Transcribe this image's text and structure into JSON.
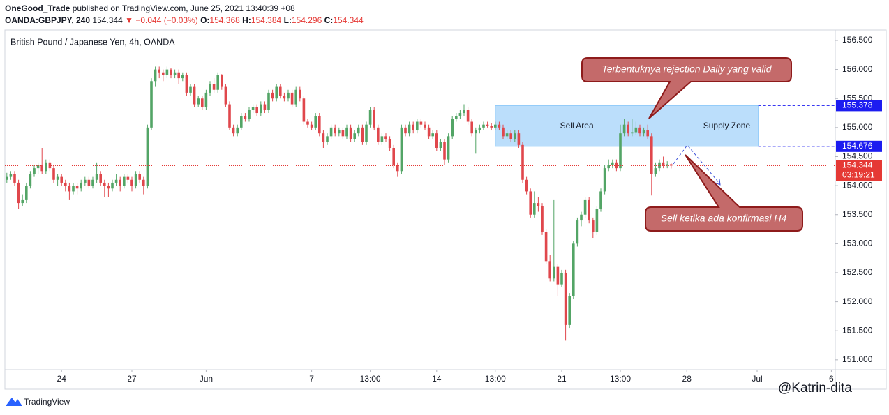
{
  "header": {
    "author": "OneGood_Trade",
    "published": "published on TradingView.com, June 25, 2021 13:40:39 +08",
    "symbol": "OANDA:GBPJPY, 240",
    "last": 154.344,
    "change": "▼ −0.044 (−0.03%)",
    "ohlc_labels": [
      "O:",
      "H:",
      "L:",
      "C:"
    ],
    "open": 154.368,
    "high": 154.384,
    "low": 154.296,
    "close": 154.344
  },
  "footer": {
    "brand": "TradingView",
    "watermark": "@Katrin-dita"
  },
  "chart_data": {
    "type": "candlestick",
    "title": "British Pound / Japanese Yen, 4h, OANDA",
    "up_color": "#53a566",
    "down_color": "#e0474c",
    "grid": false,
    "xlim": [
      -0.5,
      212
    ],
    "xticks": [
      {
        "value": 14,
        "label": "24"
      },
      {
        "value": 32,
        "label": "27"
      },
      {
        "value": 51,
        "label": "Jun"
      },
      {
        "value": 78,
        "label": "7"
      },
      {
        "value": 93,
        "label": "13:00"
      },
      {
        "value": 110,
        "label": "14"
      },
      {
        "value": 125,
        "label": "13:00"
      },
      {
        "value": 142,
        "label": "21"
      },
      {
        "value": 157,
        "label": "13:00"
      },
      {
        "value": 174,
        "label": "28"
      },
      {
        "value": 192,
        "label": "Jul"
      },
      {
        "value": 211,
        "label": "6"
      }
    ],
    "ylim": [
      150.83,
      156.68
    ],
    "yticks": [
      {
        "value": 151,
        "label": "151.000"
      },
      {
        "value": 151.5,
        "label": "151.500"
      },
      {
        "value": 152,
        "label": "152.000"
      },
      {
        "value": 152.5,
        "label": "152.500"
      },
      {
        "value": 153,
        "label": "153.000"
      },
      {
        "value": 153.5,
        "label": "153.500"
      },
      {
        "value": 154,
        "label": "154.000"
      },
      {
        "value": 154.5,
        "label": "154.500"
      },
      {
        "value": 155,
        "label": "155.000"
      },
      {
        "value": 155.5,
        "label": "155.500"
      },
      {
        "value": 156,
        "label": "156.000"
      },
      {
        "value": 156.5,
        "label": "156.500"
      }
    ],
    "zone": {
      "from": 125,
      "to": 192.3,
      "top": 155.378,
      "bottom": 154.676,
      "color": "#bbdefb",
      "labels": [
        "Sell Area",
        "Supply Zone"
      ],
      "label_colors": [
        "#e53935",
        "#1a1adb"
      ]
    },
    "price_labels": [
      {
        "value": 155.378,
        "color": "#1c1cf0"
      },
      {
        "value": 154.676,
        "color": "#1c1cf0"
      },
      {
        "value": 154.344,
        "color": "#e53935",
        "countdown": "03:19:21"
      }
    ],
    "annotations": [
      "Terbentuknya rejection Daily yang valid",
      "Sell ketika ada konfirmasi H4"
    ],
    "ohlc": [
      [
        154.1,
        154.22,
        154.05,
        154.15
      ],
      [
        154.15,
        154.25,
        154.1,
        154.2
      ],
      [
        154.2,
        154.25,
        154.0,
        154.05
      ],
      [
        154.05,
        154.1,
        153.6,
        153.7
      ],
      [
        153.7,
        153.85,
        153.65,
        153.75
      ],
      [
        153.75,
        154.05,
        153.7,
        154.0
      ],
      [
        154.0,
        154.25,
        153.95,
        154.2
      ],
      [
        154.2,
        154.35,
        154.15,
        154.3
      ],
      [
        154.3,
        154.4,
        154.2,
        154.35
      ],
      [
        154.35,
        154.65,
        154.2,
        154.25
      ],
      [
        154.25,
        154.45,
        154.2,
        154.4
      ],
      [
        154.4,
        154.45,
        154.25,
        154.3
      ],
      [
        154.3,
        154.35,
        154.05,
        154.1
      ],
      [
        154.1,
        154.2,
        154.0,
        154.15
      ],
      [
        154.15,
        154.2,
        154.0,
        154.05
      ],
      [
        154.05,
        154.1,
        153.9,
        154.0
      ],
      [
        154.0,
        154.05,
        153.75,
        153.9
      ],
      [
        153.9,
        154.05,
        153.85,
        154.0
      ],
      [
        154.0,
        154.05,
        153.85,
        153.95
      ],
      [
        153.95,
        154.1,
        153.9,
        154.05
      ],
      [
        154.05,
        154.15,
        154.0,
        154.1
      ],
      [
        154.1,
        154.15,
        153.95,
        154.0
      ],
      [
        154.0,
        154.15,
        153.95,
        154.1
      ],
      [
        154.1,
        154.4,
        154.05,
        154.2
      ],
      [
        154.2,
        154.25,
        154.0,
        154.05
      ],
      [
        154.05,
        154.1,
        153.8,
        154.0
      ],
      [
        154.0,
        154.05,
        153.8,
        153.95
      ],
      [
        153.95,
        154.1,
        153.9,
        154.05
      ],
      [
        154.05,
        154.2,
        154.0,
        154.1
      ],
      [
        154.1,
        154.15,
        153.9,
        154.0
      ],
      [
        154.0,
        154.2,
        153.95,
        154.15
      ],
      [
        154.15,
        154.2,
        154.05,
        154.1
      ],
      [
        154.1,
        154.15,
        153.9,
        154.0
      ],
      [
        154.0,
        154.25,
        153.95,
        154.2
      ],
      [
        154.2,
        154.25,
        154.05,
        154.1
      ],
      [
        154.1,
        154.15,
        153.85,
        154.0
      ],
      [
        154.0,
        155.05,
        153.95,
        155.0
      ],
      [
        155.0,
        155.85,
        154.95,
        155.8
      ],
      [
        155.8,
        156.05,
        155.7,
        156.0
      ],
      [
        156.0,
        156.05,
        155.85,
        155.95
      ],
      [
        155.95,
        156.0,
        155.8,
        155.9
      ],
      [
        155.9,
        156.05,
        155.85,
        156.0
      ],
      [
        156.0,
        156.02,
        155.85,
        155.9
      ],
      [
        155.9,
        156.0,
        155.85,
        155.95
      ],
      [
        155.95,
        156.0,
        155.75,
        155.85
      ],
      [
        155.85,
        155.95,
        155.8,
        155.9
      ],
      [
        155.9,
        155.95,
        155.55,
        155.6
      ],
      [
        155.6,
        155.75,
        155.55,
        155.7
      ],
      [
        155.7,
        155.75,
        155.35,
        155.4
      ],
      [
        155.4,
        155.55,
        155.35,
        155.5
      ],
      [
        155.5,
        155.55,
        155.3,
        155.35
      ],
      [
        155.35,
        155.65,
        155.3,
        155.6
      ],
      [
        155.6,
        155.8,
        155.55,
        155.75
      ],
      [
        155.75,
        155.85,
        155.6,
        155.65
      ],
      [
        155.65,
        155.95,
        155.6,
        155.9
      ],
      [
        155.9,
        155.92,
        155.65,
        155.7
      ],
      [
        155.7,
        155.75,
        155.35,
        155.4
      ],
      [
        155.4,
        155.45,
        154.95,
        155.0
      ],
      [
        155.0,
        155.05,
        154.85,
        154.9
      ],
      [
        154.9,
        155.05,
        154.85,
        155.0
      ],
      [
        155.0,
        155.25,
        154.95,
        155.2
      ],
      [
        155.2,
        155.25,
        155.1,
        155.15
      ],
      [
        155.15,
        155.35,
        155.1,
        155.3
      ],
      [
        155.3,
        155.4,
        155.25,
        155.35
      ],
      [
        155.35,
        155.4,
        155.2,
        155.25
      ],
      [
        155.25,
        155.45,
        155.2,
        155.4
      ],
      [
        155.4,
        155.45,
        155.25,
        155.3
      ],
      [
        155.3,
        155.65,
        155.25,
        155.6
      ],
      [
        155.6,
        155.65,
        155.45,
        155.5
      ],
      [
        155.5,
        155.75,
        155.45,
        155.7
      ],
      [
        155.7,
        155.75,
        155.5,
        155.55
      ],
      [
        155.55,
        155.6,
        155.45,
        155.5
      ],
      [
        155.5,
        155.65,
        155.45,
        155.6
      ],
      [
        155.6,
        155.65,
        155.35,
        155.4
      ],
      [
        155.4,
        155.7,
        155.35,
        155.65
      ],
      [
        155.65,
        155.7,
        155.45,
        155.5
      ],
      [
        155.5,
        155.55,
        155.05,
        155.1
      ],
      [
        155.1,
        155.15,
        155.0,
        155.05
      ],
      [
        155.05,
        155.1,
        154.95,
        155.0
      ],
      [
        155.0,
        155.25,
        154.95,
        155.2
      ],
      [
        155.2,
        155.25,
        154.85,
        154.9
      ],
      [
        154.9,
        154.95,
        154.65,
        154.75
      ],
      [
        154.75,
        154.9,
        154.7,
        154.85
      ],
      [
        154.85,
        155.05,
        154.8,
        155.0
      ],
      [
        155.0,
        155.05,
        154.85,
        154.9
      ],
      [
        154.9,
        155.0,
        154.85,
        154.95
      ],
      [
        154.95,
        155.0,
        154.8,
        154.85
      ],
      [
        154.85,
        155.05,
        154.8,
        155.0
      ],
      [
        155.0,
        155.05,
        154.75,
        154.8
      ],
      [
        154.8,
        154.95,
        154.75,
        154.9
      ],
      [
        154.9,
        155.05,
        154.85,
        155.0
      ],
      [
        155.0,
        155.05,
        154.7,
        154.75
      ],
      [
        154.75,
        155.1,
        154.7,
        155.05
      ],
      [
        155.05,
        155.35,
        155.0,
        155.3
      ],
      [
        155.3,
        155.35,
        154.95,
        155.0
      ],
      [
        155.0,
        155.05,
        154.7,
        154.75
      ],
      [
        154.75,
        154.9,
        154.7,
        154.85
      ],
      [
        154.85,
        154.9,
        154.75,
        154.8
      ],
      [
        154.8,
        154.85,
        154.6,
        154.65
      ],
      [
        154.65,
        154.7,
        154.3,
        154.35
      ],
      [
        154.35,
        154.4,
        154.15,
        154.25
      ],
      [
        154.25,
        155.05,
        154.2,
        155.0
      ],
      [
        155.0,
        155.05,
        154.85,
        154.9
      ],
      [
        154.9,
        155.1,
        154.85,
        155.05
      ],
      [
        155.05,
        155.1,
        154.9,
        154.95
      ],
      [
        154.95,
        155.15,
        154.9,
        155.1
      ],
      [
        155.1,
        155.15,
        155.0,
        155.05
      ],
      [
        155.05,
        155.1,
        154.95,
        155.0
      ],
      [
        155.0,
        155.05,
        154.8,
        154.85
      ],
      [
        154.85,
        154.95,
        154.8,
        154.9
      ],
      [
        154.9,
        154.95,
        154.6,
        154.65
      ],
      [
        154.65,
        154.8,
        154.6,
        154.75
      ],
      [
        154.75,
        154.8,
        154.35,
        154.45
      ],
      [
        154.45,
        154.9,
        154.4,
        154.85
      ],
      [
        154.85,
        155.2,
        154.8,
        155.15
      ],
      [
        155.15,
        155.25,
        155.1,
        155.2
      ],
      [
        155.2,
        155.3,
        155.15,
        155.25
      ],
      [
        155.25,
        155.4,
        155.2,
        155.3
      ],
      [
        155.3,
        155.35,
        155.05,
        155.1
      ],
      [
        155.1,
        155.15,
        154.85,
        154.9
      ],
      [
        154.9,
        155.0,
        154.55,
        154.95
      ],
      [
        154.95,
        155.05,
        154.9,
        155.0
      ],
      [
        155.0,
        155.1,
        154.95,
        155.05
      ],
      [
        155.05,
        155.1,
        155.0,
        155.03
      ],
      [
        155.03,
        155.08,
        154.95,
        155.0
      ],
      [
        155.0,
        155.1,
        154.95,
        155.05
      ],
      [
        155.05,
        155.1,
        154.95,
        155.0
      ],
      [
        155.0,
        155.05,
        154.8,
        154.85
      ],
      [
        154.85,
        154.95,
        154.8,
        154.9
      ],
      [
        154.9,
        154.95,
        154.75,
        154.8
      ],
      [
        154.8,
        154.95,
        154.75,
        154.9
      ],
      [
        154.9,
        154.95,
        154.65,
        154.7
      ],
      [
        154.7,
        154.75,
        154.05,
        154.1
      ],
      [
        154.1,
        154.15,
        153.85,
        153.9
      ],
      [
        153.9,
        153.95,
        153.45,
        153.5
      ],
      [
        153.5,
        153.9,
        153.45,
        153.7
      ],
      [
        153.7,
        153.8,
        153.55,
        153.65
      ],
      [
        153.65,
        153.7,
        153.15,
        153.2
      ],
      [
        153.2,
        153.25,
        152.65,
        152.7
      ],
      [
        152.7,
        152.8,
        152.35,
        152.4
      ],
      [
        152.4,
        153.75,
        152.35,
        152.6
      ],
      [
        152.6,
        152.65,
        152.1,
        152.3
      ],
      [
        152.3,
        152.55,
        152.25,
        152.5
      ],
      [
        152.5,
        152.55,
        151.33,
        151.6
      ],
      [
        151.6,
        152.15,
        151.55,
        152.1
      ],
      [
        152.1,
        153.05,
        152.05,
        153.0
      ],
      [
        153.0,
        153.45,
        152.95,
        153.4
      ],
      [
        153.4,
        153.55,
        153.3,
        153.5
      ],
      [
        153.5,
        153.8,
        153.45,
        153.75
      ],
      [
        153.75,
        153.8,
        153.35,
        153.4
      ],
      [
        153.4,
        153.45,
        153.1,
        153.2
      ],
      [
        153.2,
        153.65,
        153.15,
        153.6
      ],
      [
        153.6,
        153.95,
        153.55,
        153.9
      ],
      [
        153.9,
        154.35,
        153.85,
        154.3
      ],
      [
        154.3,
        154.45,
        154.25,
        154.35
      ],
      [
        154.35,
        154.45,
        154.3,
        154.4
      ],
      [
        154.4,
        154.45,
        154.25,
        154.3
      ],
      [
        154.3,
        155.05,
        154.25,
        154.9
      ],
      [
        154.9,
        155.15,
        154.85,
        155.05
      ],
      [
        155.05,
        155.1,
        154.85,
        154.9
      ],
      [
        154.9,
        155.15,
        154.85,
        154.92
      ],
      [
        154.92,
        155.1,
        154.88,
        155.0
      ],
      [
        155.0,
        155.05,
        154.85,
        154.9
      ],
      [
        154.9,
        155.0,
        154.85,
        154.95
      ],
      [
        154.95,
        155.05,
        154.8,
        154.85
      ],
      [
        154.85,
        154.9,
        153.83,
        154.2
      ],
      [
        154.2,
        154.4,
        154.15,
        154.3
      ],
      [
        154.3,
        154.45,
        154.25,
        154.4
      ],
      [
        154.4,
        154.5,
        154.3,
        154.35
      ],
      [
        154.35,
        154.42,
        154.3,
        154.368
      ],
      [
        154.368,
        154.384,
        154.296,
        154.344
      ]
    ]
  }
}
